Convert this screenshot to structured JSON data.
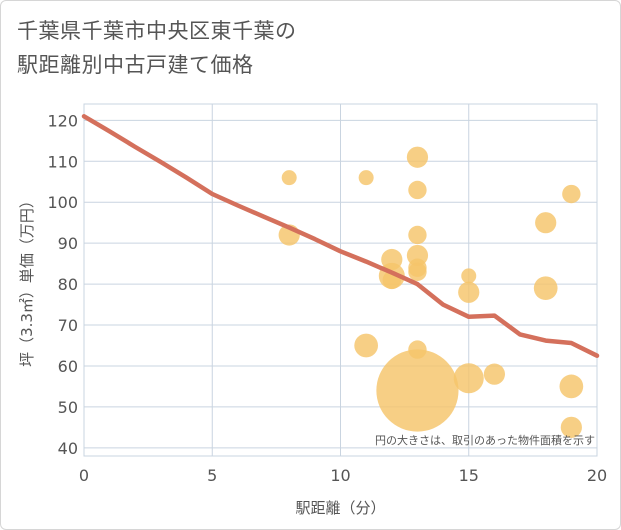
{
  "title": {
    "line1": "千葉県千葉市中央区東千葉の",
    "line2": "駅距離別中古戸建て価格"
  },
  "chart_data": {
    "type": "scatter",
    "xlabel": "駅距離（分）",
    "ylabel": "坪（3.3㎡）単価（万円）",
    "xlim": [
      0,
      20
    ],
    "ylim": [
      38,
      124
    ],
    "xticks": [
      0,
      5,
      10,
      15,
      20
    ],
    "yticks": [
      40,
      50,
      60,
      70,
      80,
      90,
      100,
      110,
      120
    ],
    "grid": true,
    "note": "円の大きさは、取引のあった物件面積を示す",
    "colors": {
      "bubble": "#f5c56a",
      "line": "#d4705c",
      "grid": "#c9d4e0"
    },
    "bubbles": [
      {
        "x": 8,
        "y": 106,
        "size": 1
      },
      {
        "x": 8,
        "y": 92,
        "size": 2
      },
      {
        "x": 11,
        "y": 106,
        "size": 1
      },
      {
        "x": 11,
        "y": 65,
        "size": 2.5
      },
      {
        "x": 12,
        "y": 86,
        "size": 2
      },
      {
        "x": 12,
        "y": 82,
        "size": 3
      },
      {
        "x": 12,
        "y": 81,
        "size": 1.5
      },
      {
        "x": 13,
        "y": 111,
        "size": 2
      },
      {
        "x": 13,
        "y": 103,
        "size": 1.5
      },
      {
        "x": 13,
        "y": 92,
        "size": 1.5
      },
      {
        "x": 13,
        "y": 87,
        "size": 2
      },
      {
        "x": 13,
        "y": 84,
        "size": 1.5
      },
      {
        "x": 13,
        "y": 83,
        "size": 1.5
      },
      {
        "x": 13,
        "y": 64,
        "size": 1.5
      },
      {
        "x": 13,
        "y": 54,
        "size": 30
      },
      {
        "x": 15,
        "y": 82,
        "size": 1
      },
      {
        "x": 15,
        "y": 78,
        "size": 2
      },
      {
        "x": 15,
        "y": 57,
        "size": 4
      },
      {
        "x": 16,
        "y": 58,
        "size": 2
      },
      {
        "x": 18,
        "y": 95,
        "size": 2
      },
      {
        "x": 18,
        "y": 79,
        "size": 2.5
      },
      {
        "x": 19,
        "y": 102,
        "size": 1.5
      },
      {
        "x": 19,
        "y": 55,
        "size": 2.5
      },
      {
        "x": 19,
        "y": 45,
        "size": 2
      }
    ],
    "trend_line": {
      "x": [
        0,
        1,
        2,
        3,
        4,
        5,
        6,
        7,
        8,
        9,
        10,
        11,
        12,
        13,
        14,
        15,
        16,
        17,
        18,
        19,
        20
      ],
      "y": [
        121,
        117.3,
        113.5,
        109.8,
        106,
        102,
        99.2,
        96.5,
        93.8,
        91,
        88,
        85.5,
        82.8,
        80,
        75,
        72,
        72.3,
        67.7,
        66.2,
        65.6,
        62.5
      ]
    }
  }
}
